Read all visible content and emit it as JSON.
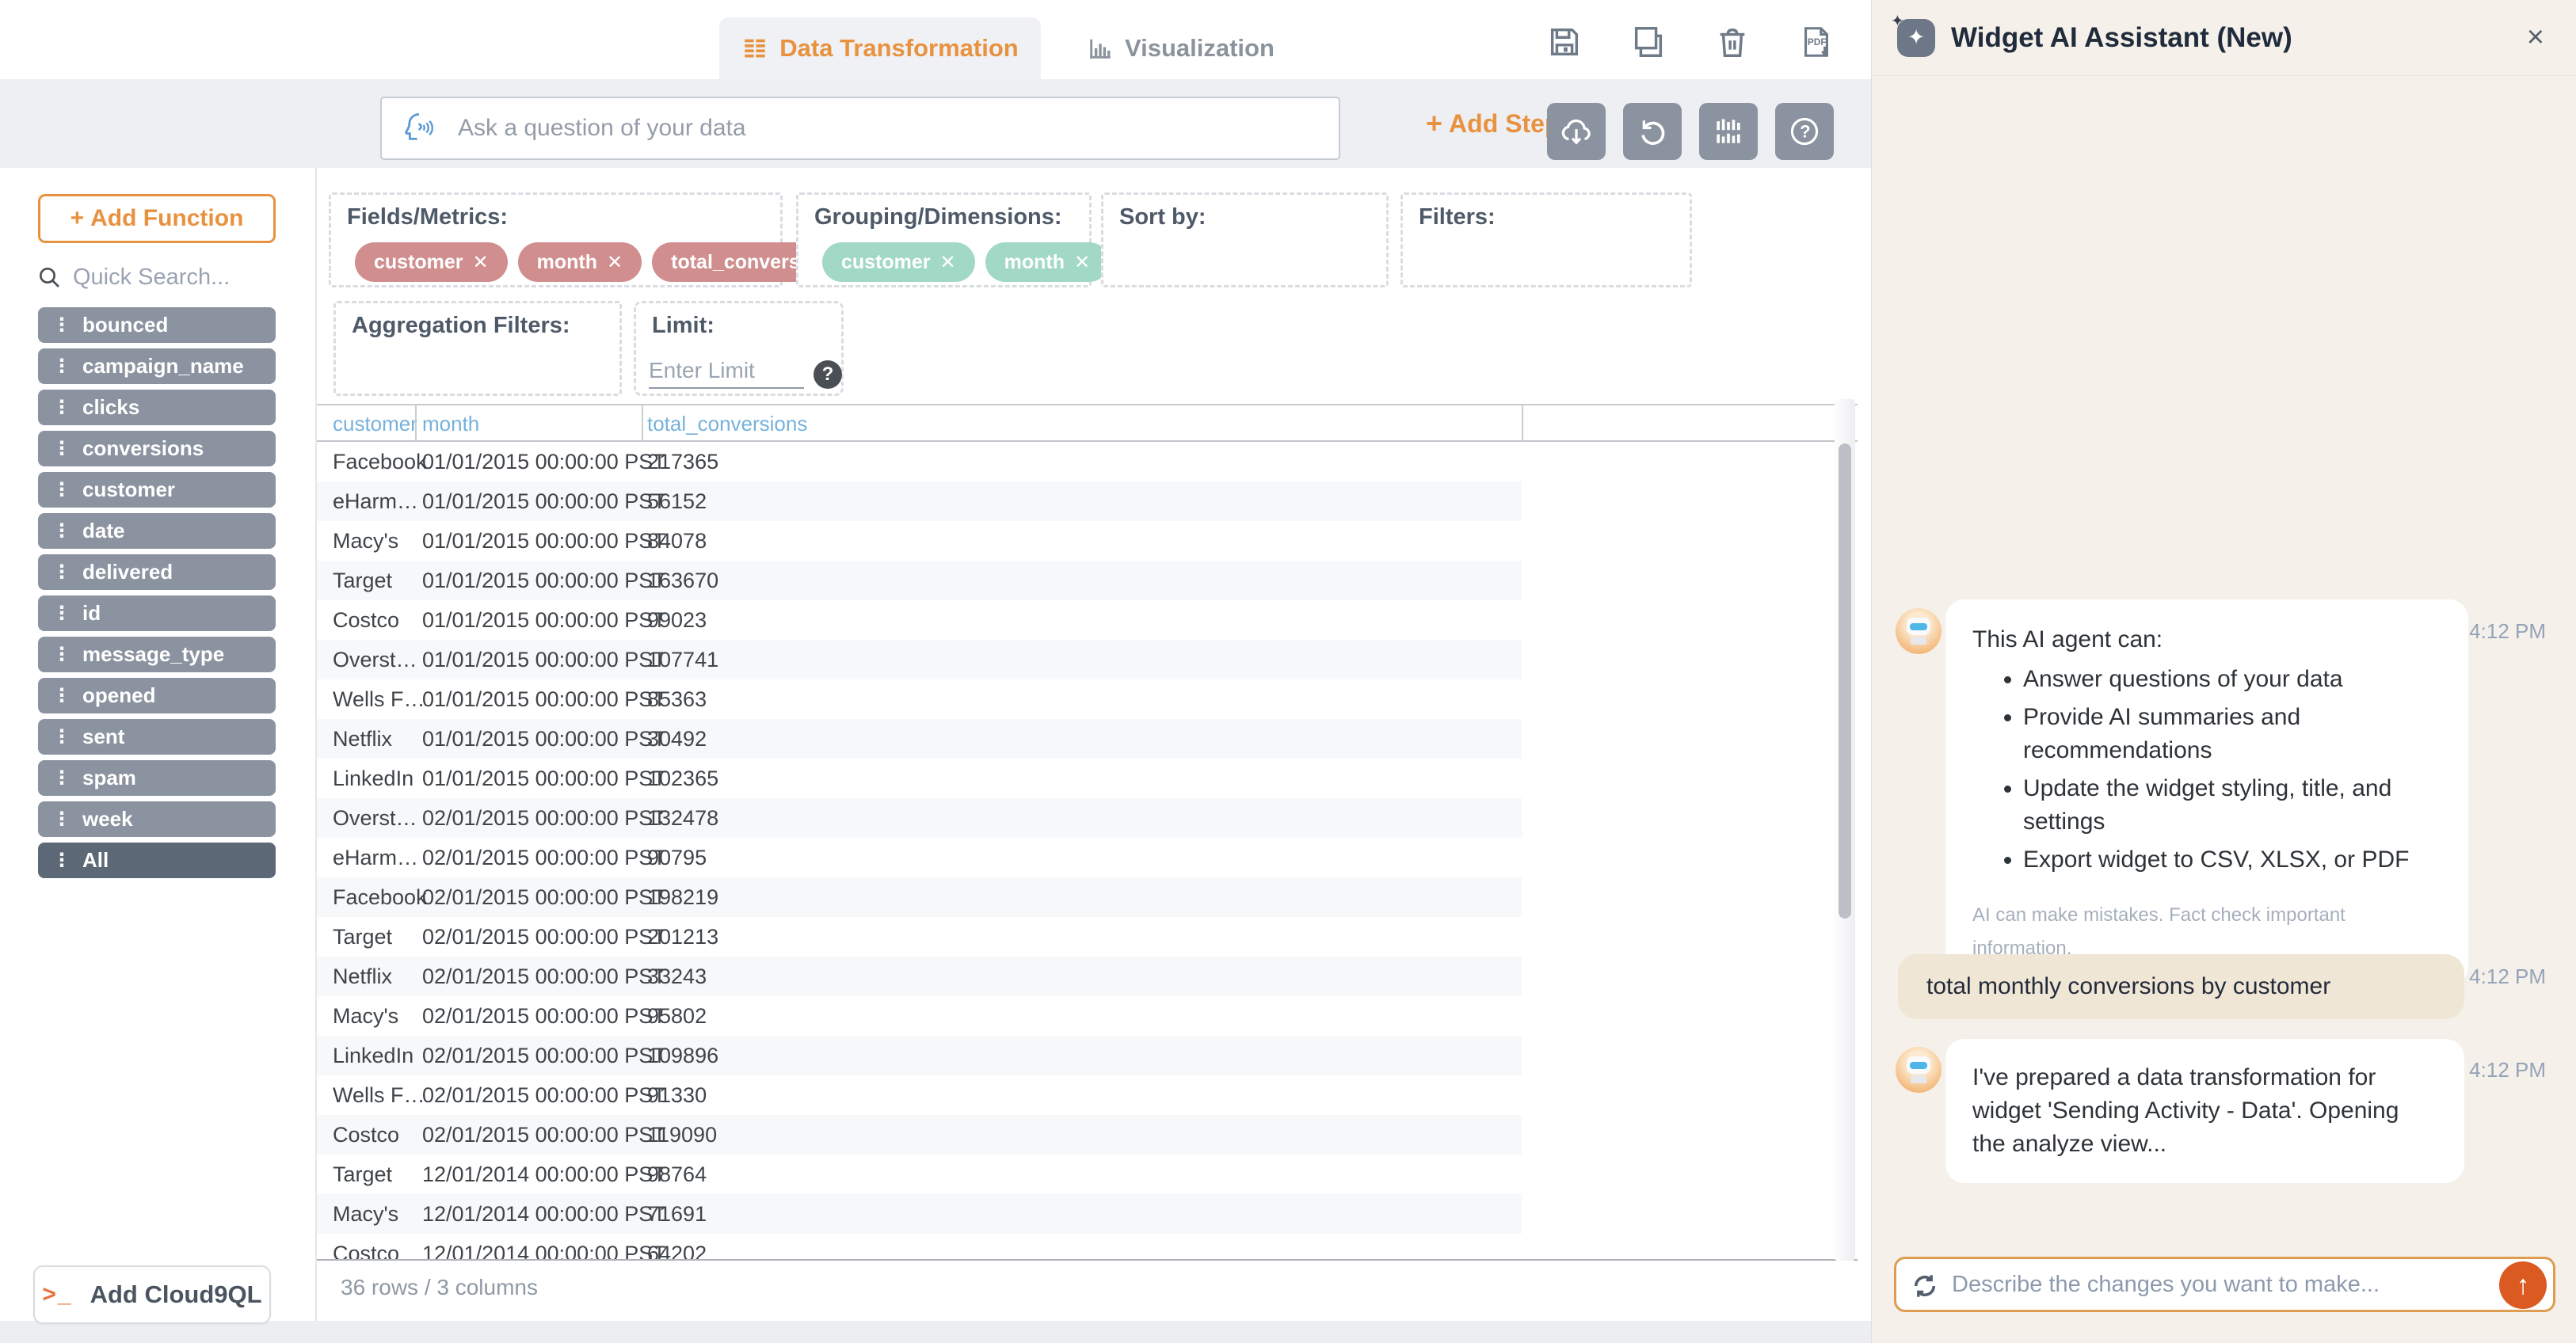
{
  "icons": {
    "plus": "+",
    "close": "×",
    "terminal": "&gt;_",
    "terminal_text": ">_",
    "question": "?",
    "up_arrow": "↑",
    "sparkle": "✦",
    "drag_handle": "⋮",
    "pill_remove": "✕"
  },
  "tabs": [
    {
      "label": "Data Transformation",
      "active": true
    },
    {
      "label": "Visualization",
      "active": false
    }
  ],
  "query_bar": {
    "placeholder": "Ask a question of your data",
    "add_step_label": "Add Step"
  },
  "sidebar": {
    "add_function_label": "Add Function",
    "search_placeholder": "Quick Search...",
    "fields": [
      "bounced",
      "campaign_name",
      "clicks",
      "conversions",
      "customer",
      "date",
      "delivered",
      "id",
      "message_type",
      "opened",
      "sent",
      "spam",
      "week"
    ],
    "all_field": "All",
    "cloud9ql_label": "Add Cloud9QL"
  },
  "transform": {
    "zones": {
      "fields_metrics": "Fields/Metrics:",
      "grouping": "Grouping/Dimensions:",
      "sort_by": "Sort by:",
      "filters": "Filters:",
      "aggregation_filters": "Aggregation Filters:",
      "limit": "Limit:"
    },
    "fields_metrics_pills": [
      "customer",
      "month",
      "total_conversions"
    ],
    "grouping_pills": [
      "customer",
      "month"
    ],
    "limit_placeholder": "Enter Limit"
  },
  "table": {
    "columns": [
      "customer",
      "month",
      "total_conversions"
    ],
    "rows": [
      [
        "Facebook",
        "01/01/2015 00:00:00 PST",
        "217365"
      ],
      [
        "eHarm…",
        "01/01/2015 00:00:00 PST",
        "56152"
      ],
      [
        "Macy's",
        "01/01/2015 00:00:00 PST",
        "84078"
      ],
      [
        "Target",
        "01/01/2015 00:00:00 PST",
        "163670"
      ],
      [
        "Costco",
        "01/01/2015 00:00:00 PST",
        "99023"
      ],
      [
        "Overst…",
        "01/01/2015 00:00:00 PST",
        "107741"
      ],
      [
        "Wells F…",
        "01/01/2015 00:00:00 PST",
        "85363"
      ],
      [
        "Netflix",
        "01/01/2015 00:00:00 PST",
        "30492"
      ],
      [
        "LinkedIn",
        "01/01/2015 00:00:00 PST",
        "102365"
      ],
      [
        "Overst…",
        "02/01/2015 00:00:00 PST",
        "132478"
      ],
      [
        "eHarm…",
        "02/01/2015 00:00:00 PST",
        "90795"
      ],
      [
        "Facebook",
        "02/01/2015 00:00:00 PST",
        "198219"
      ],
      [
        "Target",
        "02/01/2015 00:00:00 PST",
        "201213"
      ],
      [
        "Netflix",
        "02/01/2015 00:00:00 PST",
        "33243"
      ],
      [
        "Macy's",
        "02/01/2015 00:00:00 PST",
        "95802"
      ],
      [
        "LinkedIn",
        "02/01/2015 00:00:00 PST",
        "109896"
      ],
      [
        "Wells F…",
        "02/01/2015 00:00:00 PST",
        "91330"
      ],
      [
        "Costco",
        "02/01/2015 00:00:00 PST",
        "119090"
      ],
      [
        "Target",
        "12/01/2014 00:00:00 PST",
        "98764"
      ],
      [
        "Macy's",
        "12/01/2014 00:00:00 PST",
        "71691"
      ],
      [
        "Costco",
        "12/01/2014 00:00:00 PST",
        "64202"
      ]
    ],
    "footer": "36 rows / 3 columns"
  },
  "assistant": {
    "title": "Widget AI Assistant (New)",
    "messages": [
      {
        "role": "ai",
        "time": "4:12 PM",
        "intro": "This AI agent can:",
        "bullets": [
          "Answer questions of your data",
          "Provide AI summaries and recommendations",
          "Update the widget styling, title, and settings",
          "Export widget to CSV, XLSX, or PDF"
        ],
        "disclaimer": "AI can make mistakes. Fact check important information."
      },
      {
        "role": "user",
        "time": "4:12 PM",
        "text": "total monthly conversions by customer"
      },
      {
        "role": "ai",
        "time": "4:12 PM",
        "text": "I've prepared a data transformation for widget 'Sending Activity - Data'. Opening the analyze view..."
      }
    ],
    "input_placeholder": "Describe the changes you want to make..."
  },
  "colors": {
    "accent_orange": "#E8923F",
    "send_orange": "#DB5A21",
    "pill_pink": "#D18E8E",
    "pill_teal": "#A2D8C6",
    "button_gray": "#8A939F",
    "panel_cream": "#F5F0EA",
    "header_blue": "#76B1DC"
  }
}
